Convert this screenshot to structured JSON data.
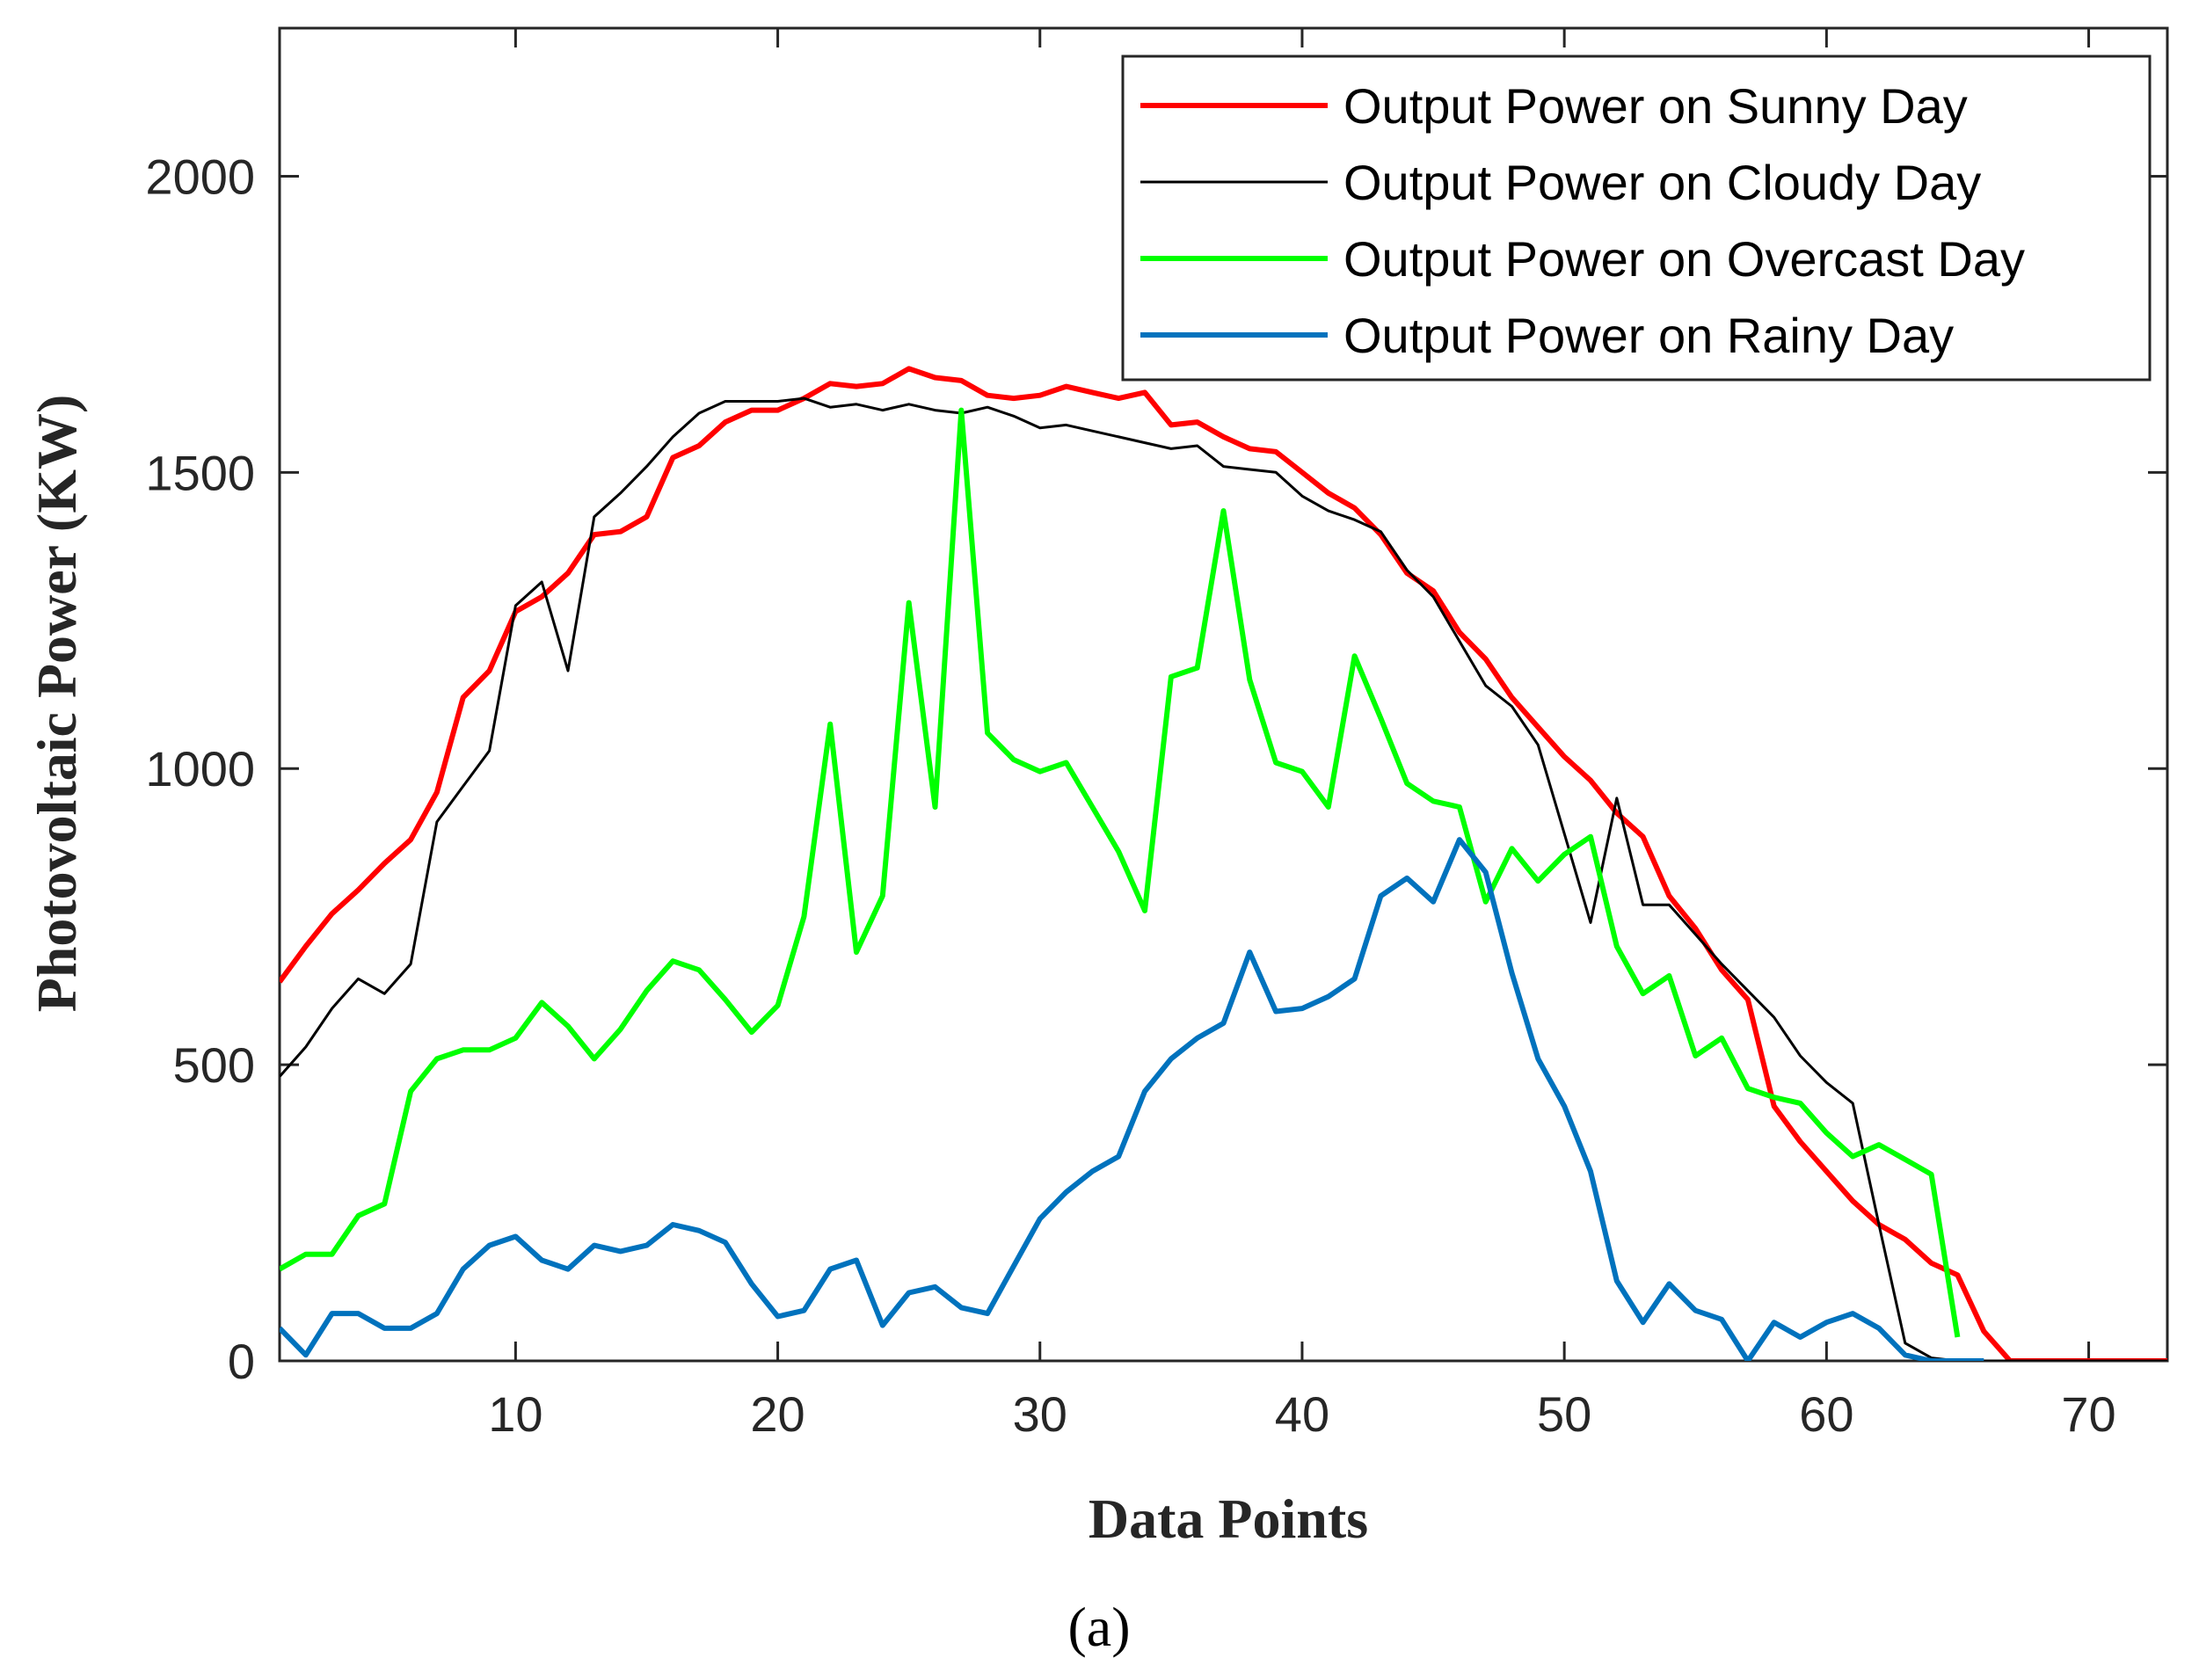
{
  "chart_data": {
    "type": "line",
    "title": "",
    "xlabel": "Data Points",
    "ylabel": "Photovoltaic Power (KW)",
    "caption": "(a)",
    "xlim": [
      1,
      73
    ],
    "ylim": [
      0,
      2250
    ],
    "xticks": [
      10,
      20,
      30,
      40,
      50,
      60,
      70
    ],
    "yticks": [
      0,
      500,
      1000,
      1500,
      2000
    ],
    "xtick_labels": [
      "10",
      "20",
      "30",
      "40",
      "50",
      "60",
      "70"
    ],
    "ytick_labels": [
      "0",
      "500",
      "1000",
      "1500",
      "2000"
    ],
    "legend_position": "top-right",
    "series": [
      {
        "name": "Output Power on Sunny Day",
        "color": "#ff0000",
        "x_start": 1,
        "values": [
          640,
          700,
          755,
          795,
          840,
          880,
          960,
          1120,
          1165,
          1265,
          1290,
          1330,
          1395,
          1400,
          1425,
          1525,
          1545,
          1585,
          1605,
          1605,
          1625,
          1650,
          1645,
          1650,
          1675,
          1660,
          1655,
          1630,
          1625,
          1630,
          1645,
          1635,
          1625,
          1635,
          1580,
          1585,
          1560,
          1540,
          1535,
          1500,
          1465,
          1440,
          1395,
          1330,
          1300,
          1230,
          1185,
          1120,
          1070,
          1020,
          980,
          925,
          885,
          785,
          730,
          660,
          610,
          430,
          370,
          320,
          270,
          230,
          205,
          165,
          145,
          50,
          0,
          0,
          0,
          0,
          0,
          0,
          0
        ]
      },
      {
        "name": "Output Power on Cloudy Day",
        "color": "#000000",
        "x_start": 1,
        "values": [
          480,
          530,
          595,
          645,
          620,
          670,
          910,
          970,
          1030,
          1275,
          1315,
          1165,
          1425,
          1465,
          1510,
          1560,
          1600,
          1620,
          1620,
          1620,
          1625,
          1610,
          1615,
          1605,
          1615,
          1605,
          1600,
          1610,
          1595,
          1575,
          1580,
          1570,
          1560,
          1550,
          1540,
          1545,
          1510,
          1505,
          1500,
          1460,
          1435,
          1420,
          1400,
          1335,
          1290,
          1215,
          1140,
          1105,
          1040,
          890,
          740,
          950,
          770,
          770,
          720,
          670,
          625,
          580,
          515,
          470,
          435,
          230,
          30,
          5,
          0,
          0,
          0,
          0,
          0,
          0,
          0,
          0,
          0
        ]
      },
      {
        "name": "Output Power on Overcast Day",
        "color": "#00ff00",
        "x_start": 1,
        "values": [
          155,
          180,
          180,
          245,
          265,
          455,
          510,
          525,
          525,
          545,
          605,
          565,
          510,
          560,
          625,
          675,
          660,
          610,
          555,
          600,
          750,
          1075,
          690,
          785,
          1280,
          935,
          1605,
          1060,
          1015,
          995,
          1010,
          935,
          860,
          760,
          1155,
          1170,
          1435,
          1150,
          1010,
          995,
          935,
          1190,
          1085,
          975,
          945,
          935,
          775,
          865,
          810,
          855,
          885,
          700,
          620,
          650,
          515,
          545,
          460,
          445,
          435,
          385,
          345,
          365,
          340,
          315,
          40
        ]
      },
      {
        "name": "Output Power on Rainy Day",
        "color": "#0072bd",
        "x_start": 1,
        "values": [
          55,
          10,
          80,
          80,
          55,
          55,
          80,
          155,
          195,
          210,
          170,
          155,
          195,
          185,
          195,
          230,
          220,
          200,
          130,
          75,
          85,
          155,
          170,
          60,
          115,
          125,
          90,
          80,
          160,
          240,
          285,
          320,
          345,
          455,
          510,
          545,
          570,
          690,
          590,
          595,
          615,
          645,
          785,
          815,
          775,
          880,
          825,
          655,
          510,
          430,
          320,
          135,
          65,
          130,
          85,
          70,
          0,
          65,
          40,
          65,
          80,
          55,
          10,
          0,
          0,
          0
        ]
      }
    ]
  }
}
